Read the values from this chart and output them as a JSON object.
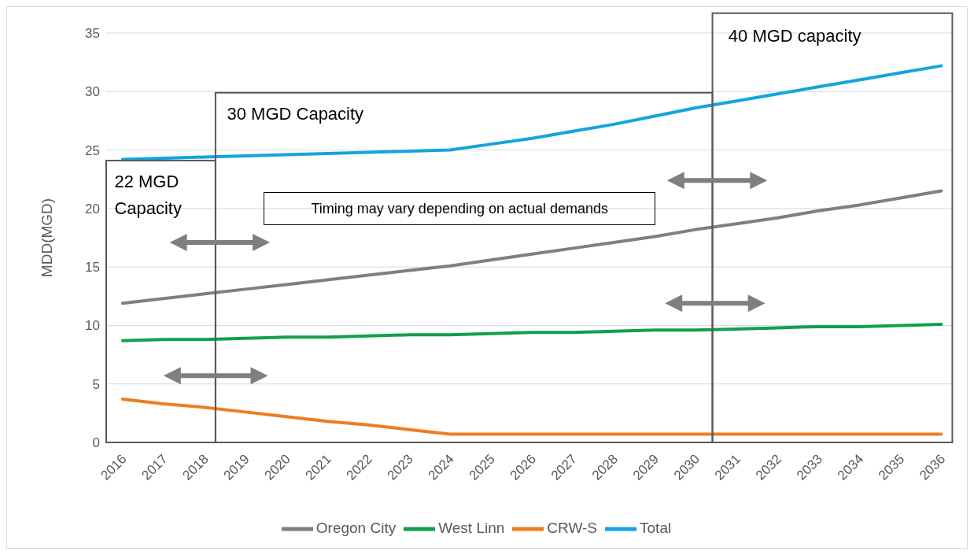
{
  "chart_data": {
    "type": "line",
    "ylabel": "MDD(MGD)",
    "categories": [
      "2016",
      "2017",
      "2018",
      "2019",
      "2020",
      "2021",
      "2022",
      "2023",
      "2024",
      "2025",
      "2026",
      "2027",
      "2028",
      "2029",
      "2030",
      "2031",
      "2032",
      "2033",
      "2034",
      "2035",
      "2036"
    ],
    "series": [
      {
        "name": "Oregon City",
        "color": "#7f7f7f",
        "values": [
          11.9,
          12.3,
          12.7,
          13.1,
          13.5,
          13.9,
          14.3,
          14.7,
          15.1,
          15.6,
          16.1,
          16.6,
          17.1,
          17.6,
          18.2,
          18.7,
          19.2,
          19.8,
          20.3,
          20.9,
          21.5
        ]
      },
      {
        "name": "West Linn",
        "color": "#11a04a",
        "values": [
          8.7,
          8.8,
          8.8,
          8.9,
          9.0,
          9.0,
          9.1,
          9.2,
          9.2,
          9.3,
          9.4,
          9.4,
          9.5,
          9.6,
          9.6,
          9.7,
          9.8,
          9.9,
          9.9,
          10.0,
          10.1
        ]
      },
      {
        "name": "CRW-S",
        "color": "#ee7d22",
        "values": [
          3.7,
          3.3,
          3.0,
          2.6,
          2.2,
          1.8,
          1.5,
          1.1,
          0.7,
          0.7,
          0.7,
          0.7,
          0.7,
          0.7,
          0.7,
          0.7,
          0.7,
          0.7,
          0.7,
          0.7,
          0.7
        ]
      },
      {
        "name": "Total",
        "color": "#14a5dc",
        "values": [
          24.2,
          24.3,
          24.4,
          24.5,
          24.6,
          24.7,
          24.8,
          24.9,
          25.0,
          25.5,
          26.0,
          26.6,
          27.2,
          27.9,
          28.6,
          29.2,
          29.8,
          30.4,
          31.0,
          31.6,
          32.2
        ]
      }
    ],
    "ylim": [
      0,
      35
    ],
    "yticks": [
      0,
      5,
      10,
      15,
      20,
      25,
      30,
      35
    ],
    "grid": "y",
    "legend": "bottom",
    "marker": "none",
    "line_style": "solid",
    "annotations": [
      "22 MGD Capacity",
      "30 MGD Capacity",
      "40 MGD capacity",
      "Timing may vary depending on actual demands"
    ]
  }
}
